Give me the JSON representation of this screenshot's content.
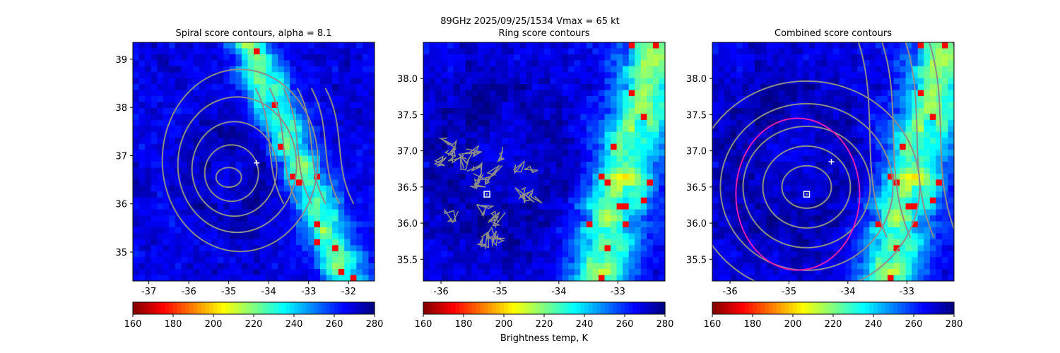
{
  "figure": {
    "suptitle": "89GHz  2025/09/25/1534    Vmax = 65 kt",
    "colorbar_label": "Brightness temp, K"
  },
  "chart_data": [
    {
      "type": "heatmap",
      "title": "Spiral score contours, alpha =  8.1",
      "xlim": [
        -37.4,
        -31.35
      ],
      "ylim": [
        34.4,
        39.35
      ],
      "xticks": [
        "-37",
        "-36",
        "-35",
        "-34",
        "-33",
        "-32"
      ],
      "yticks": [
        "35",
        "36",
        "37",
        "38",
        "39"
      ],
      "markers": [
        {
          "kind": "plus",
          "x": -34.3,
          "y": 36.85,
          "color": "#ffffff"
        }
      ],
      "colorbar": {
        "min": 160,
        "max": 280,
        "ticks": [
          "160",
          "180",
          "200",
          "220",
          "240",
          "260",
          "280"
        ],
        "cmap": "jet_r"
      }
    },
    {
      "type": "heatmap",
      "title": "Ring score contours",
      "xlim": [
        -36.3,
        -32.2
      ],
      "ylim": [
        35.2,
        38.5
      ],
      "xticks": [
        "-36",
        "-35",
        "-34",
        "-33"
      ],
      "yticks": [
        "35.5",
        "36.0",
        "36.5",
        "37.0",
        "37.5",
        "38.0"
      ],
      "markers": [
        {
          "kind": "square",
          "x": -35.22,
          "y": 36.4,
          "color": "#ffffff"
        }
      ],
      "colorbar": {
        "min": 160,
        "max": 280,
        "ticks": [
          "160",
          "180",
          "200",
          "220",
          "240",
          "260",
          "280"
        ],
        "cmap": "jet_r"
      }
    },
    {
      "type": "heatmap",
      "title": "Combined score contours",
      "xlim": [
        -36.3,
        -32.2
      ],
      "ylim": [
        35.2,
        38.5
      ],
      "xticks": [
        "-36",
        "-35",
        "-34",
        "-33"
      ],
      "yticks": [
        "35.5",
        "36.0",
        "36.5",
        "37.0",
        "37.5",
        "38.0"
      ],
      "markers": [
        {
          "kind": "plus",
          "x": -34.28,
          "y": 36.85,
          "color": "#ffffff"
        },
        {
          "kind": "square",
          "x": -34.7,
          "y": 36.4,
          "color": "#ffffff"
        }
      ],
      "circle": {
        "cx": -34.85,
        "cy": 36.4,
        "r": 1.05,
        "color": "#e01eb4"
      },
      "colorbar": {
        "min": 160,
        "max": 280,
        "ticks": [
          "160",
          "180",
          "200",
          "220",
          "240",
          "260",
          "280"
        ],
        "cmap": "jet_r"
      }
    }
  ]
}
